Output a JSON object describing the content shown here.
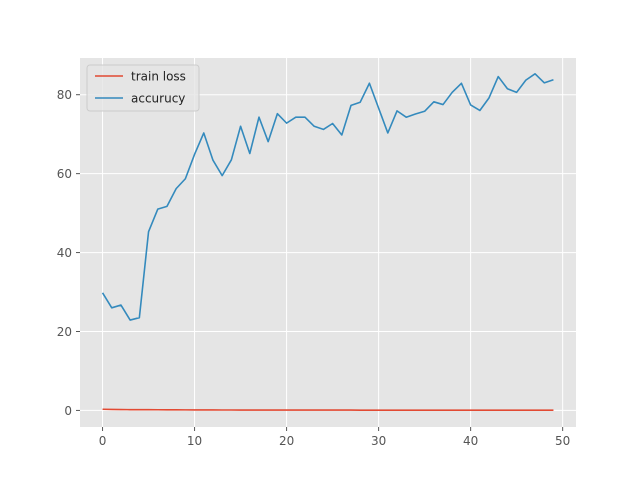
{
  "chart_data": {
    "type": "line",
    "title": "",
    "xlabel": "",
    "ylabel": "",
    "xlim": [
      -2.45,
      51.45
    ],
    "ylim": [
      -4.2,
      89.3
    ],
    "xticks": [
      0,
      10,
      20,
      30,
      40,
      50
    ],
    "yticks": [
      0,
      20,
      40,
      60,
      80
    ],
    "xtick_labels": [
      "0",
      "10",
      "20",
      "30",
      "40",
      "50"
    ],
    "ytick_labels": [
      "0",
      "20",
      "40",
      "60",
      "80"
    ],
    "grid": true,
    "style": "ggplot",
    "legend_position": "upper-left",
    "x": [
      0,
      1,
      2,
      3,
      4,
      5,
      6,
      7,
      8,
      9,
      10,
      11,
      12,
      13,
      14,
      15,
      16,
      17,
      18,
      19,
      20,
      21,
      22,
      23,
      24,
      25,
      26,
      27,
      28,
      29,
      30,
      31,
      32,
      33,
      34,
      35,
      36,
      37,
      38,
      39,
      40,
      41,
      42,
      43,
      44,
      45,
      46,
      47,
      48,
      49
    ],
    "series": [
      {
        "name": "train loss",
        "color": "#E24A33",
        "values": [
          0.3,
          0.25,
          0.22,
          0.2,
          0.2,
          0.18,
          0.17,
          0.16,
          0.15,
          0.14,
          0.13,
          0.12,
          0.12,
          0.11,
          0.11,
          0.1,
          0.1,
          0.1,
          0.09,
          0.09,
          0.09,
          0.09,
          0.08,
          0.08,
          0.08,
          0.08,
          0.08,
          0.08,
          0.07,
          0.07,
          0.07,
          0.07,
          0.07,
          0.07,
          0.07,
          0.07,
          0.06,
          0.06,
          0.06,
          0.06,
          0.06,
          0.06,
          0.06,
          0.06,
          0.06,
          0.06,
          0.06,
          0.06,
          0.05,
          0.05
        ]
      },
      {
        "name": "accurucy",
        "color": "#348ABD",
        "values": [
          29.8,
          26.0,
          26.7,
          22.9,
          23.5,
          45.3,
          51.0,
          51.7,
          56.2,
          58.7,
          64.9,
          70.3,
          63.4,
          59.5,
          63.5,
          72.0,
          65.1,
          74.3,
          68.1,
          75.2,
          72.8,
          74.3,
          74.3,
          72.0,
          71.2,
          72.7,
          69.8,
          77.3,
          78.1,
          82.9,
          76.6,
          70.3,
          75.9,
          74.3,
          75.1,
          75.8,
          78.2,
          77.5,
          80.6,
          82.9,
          77.4,
          76.0,
          79.2,
          84.6,
          81.5,
          80.6,
          83.7,
          85.3,
          83.0,
          83.8
        ]
      }
    ]
  }
}
